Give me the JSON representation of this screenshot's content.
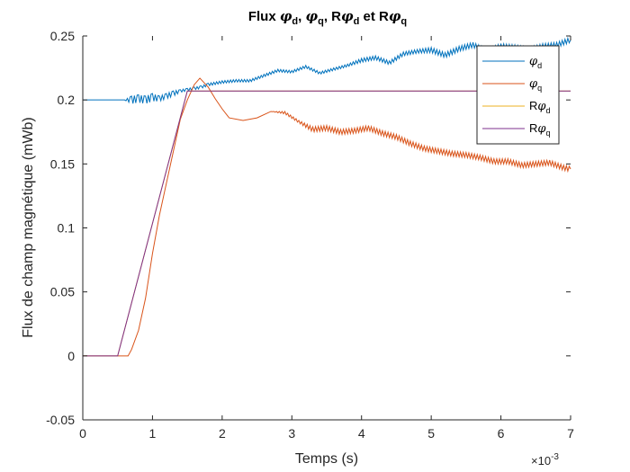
{
  "chart_data": {
    "type": "line",
    "title": {
      "prefix": "Flux ",
      "parts": [
        {
          "pre": "",
          "sym": "φ",
          "sub": "d",
          "post": ", "
        },
        {
          "pre": "",
          "sym": "φ",
          "sub": "q",
          "post": ", "
        },
        {
          "pre": "R",
          "sym": "φ",
          "sub": "d",
          "post": " et "
        },
        {
          "pre": "R",
          "sym": "φ",
          "sub": "q",
          "post": ""
        }
      ]
    },
    "xlabel": "Temps (s)",
    "ylabel": "Flux de champ magnétique (mWb)",
    "x_exponent_base": "×10",
    "x_exponent_power": "-3",
    "xlim": [
      0,
      7
    ],
    "ylim": [
      -0.05,
      0.25
    ],
    "xticks": [
      0,
      1,
      2,
      3,
      4,
      5,
      6,
      7
    ],
    "xtick_labels": [
      "0",
      "1",
      "2",
      "3",
      "4",
      "5",
      "6",
      "7"
    ],
    "yticks": [
      -0.05,
      0,
      0.05,
      0.1,
      0.15,
      0.2,
      0.25
    ],
    "ytick_labels": [
      "-0.05",
      "0",
      "0.05",
      "0.1",
      "0.15",
      "0.2",
      "0.25"
    ],
    "grid": false,
    "legend_position": "top-right",
    "series": [
      {
        "name_pre": "",
        "name_sym": "φ",
        "name_sub": "d",
        "color": "#0072BD",
        "x": [
          0,
          0.6,
          0.7,
          0.8,
          0.9,
          1.0,
          1.1,
          1.2,
          1.3,
          1.4,
          1.5,
          1.6,
          1.7,
          1.8,
          2.0,
          2.2,
          2.4,
          2.6,
          2.8,
          3.0,
          3.2,
          3.4,
          3.6,
          3.8,
          4.0,
          4.2,
          4.4,
          4.6,
          4.8,
          5.0,
          5.2,
          5.4,
          5.6,
          5.8,
          6.0,
          6.2,
          6.4,
          6.6,
          6.8,
          7.0
        ],
        "y": [
          0.2,
          0.2,
          0.2,
          0.201,
          0.2,
          0.202,
          0.201,
          0.203,
          0.205,
          0.207,
          0.208,
          0.209,
          0.21,
          0.212,
          0.214,
          0.215,
          0.215,
          0.219,
          0.223,
          0.222,
          0.226,
          0.221,
          0.224,
          0.227,
          0.231,
          0.233,
          0.229,
          0.236,
          0.238,
          0.239,
          0.235,
          0.24,
          0.243,
          0.238,
          0.242,
          0.241,
          0.239,
          0.242,
          0.243,
          0.247
        ],
        "ripple": [
          0,
          0,
          0.003,
          0.003,
          0.003,
          0.003,
          0.002,
          0.002,
          0.002,
          0.001,
          0.001,
          0.001,
          0.001,
          0.001,
          0.001,
          0.001,
          0.001,
          0.001,
          0.001,
          0.001,
          0.001,
          0.001,
          0.001,
          0.001,
          0.0015,
          0.0015,
          0.0015,
          0.0015,
          0.0015,
          0.002,
          0.002,
          0.002,
          0.002,
          0.002,
          0.002,
          0.002,
          0.002,
          0.002,
          0.002,
          0.002
        ]
      },
      {
        "name_pre": "",
        "name_sym": "φ",
        "name_sub": "q",
        "color": "#D95319",
        "x": [
          0,
          0.6,
          0.65,
          0.7,
          0.8,
          0.9,
          1.0,
          1.1,
          1.2,
          1.3,
          1.4,
          1.5,
          1.6,
          1.68,
          1.8,
          1.9,
          2.0,
          2.1,
          2.3,
          2.5,
          2.7,
          2.9,
          3.1,
          3.3,
          3.5,
          3.7,
          3.9,
          4.1,
          4.3,
          4.5,
          4.7,
          4.9,
          5.1,
          5.3,
          5.5,
          5.7,
          5.9,
          6.1,
          6.3,
          6.5,
          6.7,
          6.9,
          7.0
        ],
        "y": [
          0,
          0,
          0,
          0.005,
          0.02,
          0.045,
          0.08,
          0.11,
          0.135,
          0.16,
          0.185,
          0.2,
          0.212,
          0.217,
          0.21,
          0.201,
          0.193,
          0.186,
          0.184,
          0.186,
          0.191,
          0.19,
          0.183,
          0.177,
          0.178,
          0.175,
          0.176,
          0.178,
          0.174,
          0.171,
          0.166,
          0.162,
          0.16,
          0.158,
          0.157,
          0.155,
          0.152,
          0.152,
          0.149,
          0.15,
          0.151,
          0.147,
          0.146
        ],
        "ripple": [
          0,
          0,
          0,
          0,
          0,
          0,
          0,
          0,
          0,
          0,
          0,
          0,
          0,
          0,
          0,
          0,
          0,
          0,
          0,
          0,
          0,
          0.001,
          0.001,
          0.002,
          0.002,
          0.002,
          0.002,
          0.002,
          0.002,
          0.002,
          0.002,
          0.002,
          0.002,
          0.002,
          0.002,
          0.002,
          0.002,
          0.002,
          0.002,
          0.002,
          0.002,
          0.002,
          0.002
        ]
      },
      {
        "name_pre": "R",
        "name_sym": "φ",
        "name_sub": "d",
        "color": "#EDB120",
        "x": [
          0,
          0.5,
          1.5,
          7.0
        ],
        "y": [
          0,
          0,
          0.207,
          0.207
        ],
        "ripple": [
          0,
          0,
          0,
          0
        ]
      },
      {
        "name_pre": "R",
        "name_sym": "φ",
        "name_sub": "q",
        "color": "#7E2F8E",
        "x": [
          0,
          0.5,
          1.5,
          7.0
        ],
        "y": [
          0,
          0,
          0.207,
          0.207
        ],
        "ripple": [
          0,
          0,
          0,
          0
        ]
      }
    ]
  }
}
